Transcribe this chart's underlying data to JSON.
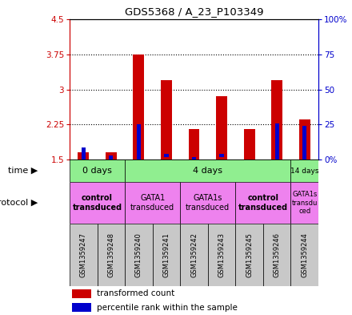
{
  "title": "GDS5368 / A_23_P103349",
  "samples": [
    "GSM1359247",
    "GSM1359248",
    "GSM1359240",
    "GSM1359241",
    "GSM1359242",
    "GSM1359243",
    "GSM1359245",
    "GSM1359246",
    "GSM1359244"
  ],
  "red_bottom": [
    1.5,
    1.5,
    1.5,
    1.5,
    1.5,
    1.5,
    1.5,
    1.5,
    1.5
  ],
  "red_top": [
    1.65,
    1.65,
    3.75,
    3.2,
    2.15,
    2.85,
    2.15,
    3.2,
    2.35
  ],
  "blue_bottom": [
    1.5,
    1.5,
    1.5,
    1.55,
    1.5,
    1.55,
    1.5,
    1.5,
    1.5
  ],
  "blue_top": [
    1.75,
    1.58,
    2.25,
    1.62,
    1.55,
    1.62,
    1.5,
    2.28,
    2.22
  ],
  "ylim": [
    1.5,
    4.5
  ],
  "yticks_left": [
    1.5,
    2.25,
    3.0,
    3.75,
    4.5
  ],
  "ytick_labels_left": [
    "1.5",
    "2.25",
    "3",
    "3.75",
    "4.5"
  ],
  "yticks_right": [
    0,
    25,
    50,
    75,
    100
  ],
  "ytick_labels_right": [
    "0%",
    "25",
    "50",
    "75",
    "100%"
  ],
  "left_axis_color": "#cc0000",
  "right_axis_color": "#0000cc",
  "red_bar_width": 0.4,
  "blue_bar_width": 0.15,
  "time_groups": [
    {
      "label": "0 days",
      "start": 0,
      "end": 2,
      "color": "#90ee90"
    },
    {
      "label": "4 days",
      "start": 2,
      "end": 8,
      "color": "#90ee90"
    },
    {
      "label": "14 days",
      "start": 8,
      "end": 9,
      "color": "#90ee90"
    }
  ],
  "protocol_groups": [
    {
      "label": "control\ntransduced",
      "start": 0,
      "end": 2,
      "color": "#ee82ee",
      "bold": true
    },
    {
      "label": "GATA1\ntransduced",
      "start": 2,
      "end": 4,
      "color": "#ee82ee",
      "bold": false
    },
    {
      "label": "GATA1s\ntransduced",
      "start": 4,
      "end": 6,
      "color": "#ee82ee",
      "bold": false
    },
    {
      "label": "control\ntransduced",
      "start": 6,
      "end": 8,
      "color": "#ee82ee",
      "bold": true
    },
    {
      "label": "GATA1s\ntransdu\nced",
      "start": 8,
      "end": 9,
      "color": "#ee82ee",
      "bold": false
    }
  ],
  "legend_red": "transformed count",
  "legend_blue": "percentile rank within the sample",
  "sample_bg_color": "#c8c8c8",
  "dotted_yticks": [
    2.25,
    3.0,
    3.75
  ],
  "fig_width": 4.4,
  "fig_height": 3.93
}
